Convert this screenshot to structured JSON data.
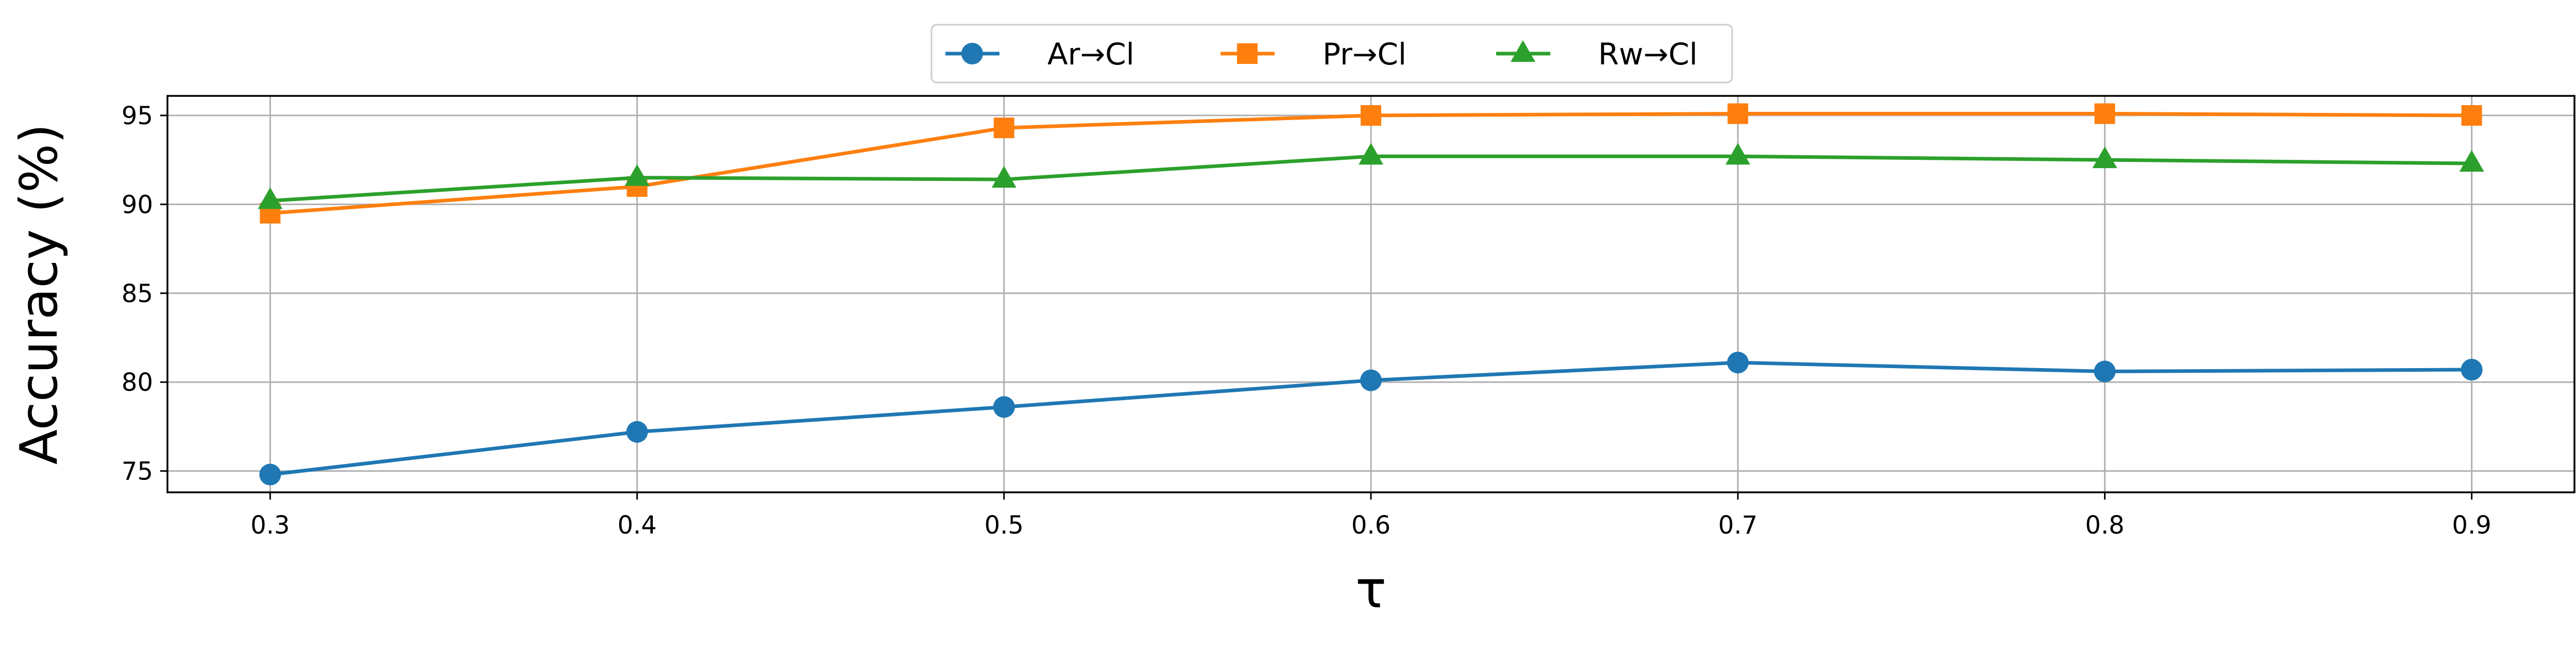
{
  "chart_data": {
    "type": "line",
    "title": "",
    "xlabel": "τ",
    "ylabel": "Accuracy (%)",
    "x": [
      0.3,
      0.4,
      0.5,
      0.6,
      0.7,
      0.8,
      0.9
    ],
    "x_tick_labels": [
      "0.3",
      "0.4",
      "0.5",
      "0.6",
      "0.7",
      "0.8",
      "0.9"
    ],
    "y_ticks": [
      75,
      80,
      85,
      90,
      95
    ],
    "y_tick_labels": [
      "75",
      "80",
      "85",
      "90",
      "95"
    ],
    "xlim": [
      0.272,
      0.928
    ],
    "ylim": [
      73.8,
      96.1
    ],
    "grid": true,
    "legend_position": "top-center (outside plot)",
    "series": [
      {
        "name": "Ar→Cl",
        "color": "#1f77b4",
        "marker": "circle",
        "values": [
          74.8,
          77.2,
          78.6,
          80.1,
          81.1,
          80.6,
          80.7
        ]
      },
      {
        "name": "Pr→Cl",
        "color": "#ff7f0e",
        "marker": "square",
        "values": [
          89.5,
          91.0,
          94.3,
          95.0,
          95.1,
          95.1,
          95.0
        ]
      },
      {
        "name": "Rw→Cl",
        "color": "#2ca02c",
        "marker": "triangle",
        "values": [
          90.2,
          91.5,
          91.4,
          92.7,
          92.7,
          92.5,
          92.3
        ]
      }
    ]
  }
}
